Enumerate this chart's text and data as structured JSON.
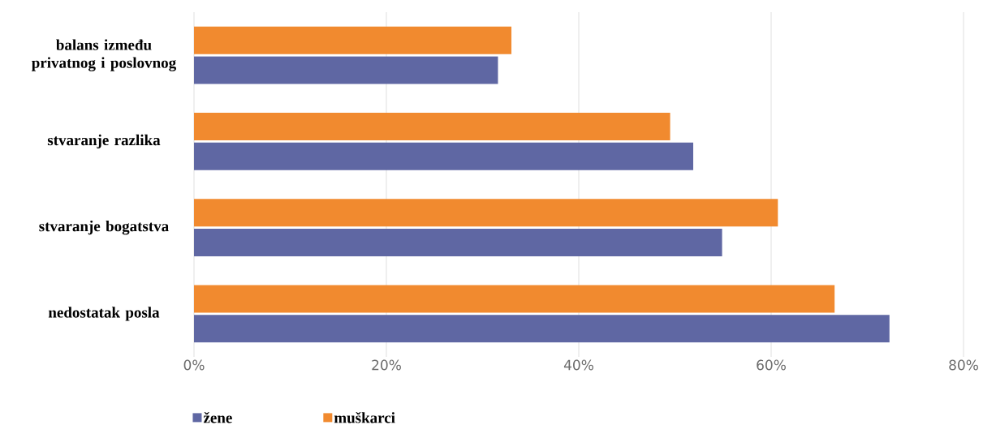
{
  "chart_data": {
    "type": "bar",
    "orientation": "horizontal",
    "categories": [
      "balans između privatnog i poslovnog",
      "stvaranje razlika",
      "stvaranje bogatstva",
      "nedostatak posla"
    ],
    "series": [
      {
        "name": "žene",
        "color": "#5f67a3",
        "values": [
          31.6,
          51.9,
          54.9,
          72.3
        ]
      },
      {
        "name": "muškarci",
        "color": "#f18a2f",
        "values": [
          33.0,
          49.5,
          60.7,
          66.6
        ]
      }
    ],
    "xlim": [
      0,
      80
    ],
    "xticks": [
      {
        "value": 0,
        "label": "0%"
      },
      {
        "value": 20,
        "label": "20%"
      },
      {
        "value": 40,
        "label": "40%"
      },
      {
        "value": 60,
        "label": "60%"
      },
      {
        "value": 80,
        "label": "80%"
      }
    ],
    "grid": "x",
    "legend": "bottom left"
  }
}
